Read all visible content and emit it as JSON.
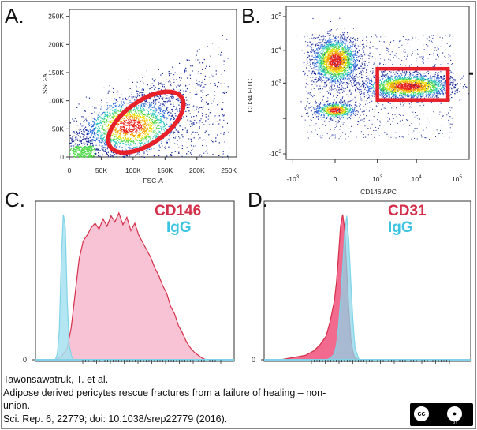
{
  "panels": {
    "a": "A.",
    "b": "B.",
    "c": "C.",
    "d": "D."
  },
  "chart_data": [
    {
      "type": "scatter",
      "xlabel": "FSC-A",
      "ylabel": "SSC-A",
      "xlim": [
        0,
        262144
      ],
      "ylim": [
        0,
        262144
      ],
      "xticks": [
        "0",
        "50K",
        "100K",
        "150K",
        "200K",
        "250K"
      ],
      "yticks": [
        "0",
        "50K",
        "100K",
        "150K",
        "200K",
        "250K"
      ],
      "xtick_values": [
        0,
        50000,
        100000,
        150000,
        200000,
        250000
      ],
      "ytick_values": [
        0,
        50000,
        100000,
        150000,
        200000,
        250000
      ],
      "gate": {
        "shape": "ellipse",
        "center": [
          120000,
          62000
        ],
        "semi_axes": [
          68000,
          38000
        ],
        "rotation_deg": -35,
        "color": "#e8202a"
      },
      "population": {
        "center": [
          95000,
          55000
        ],
        "spread": [
          45000,
          30000
        ],
        "events": 5000
      }
    },
    {
      "type": "scatter",
      "xlabel": "CD146 APC",
      "ylabel": "CD34 FITC",
      "scale": "biexponential",
      "xticks": [
        "-10^3",
        "0",
        "10^3",
        "10^4",
        "10^5"
      ],
      "yticks": [
        "-10^3",
        "10^3",
        "10^4",
        "10^5"
      ],
      "gate": {
        "shape": "rectangle",
        "x": [
          1000,
          60000
        ],
        "y": [
          250,
          2800
        ],
        "color": "#e8202a"
      },
      "populations": [
        {
          "name": "",
          "center": [
            0,
            5000
          ],
          "events": 2200
        },
        {
          "name": "",
          "center": [
            6000,
            800
          ],
          "events": 2400
        },
        {
          "name": "",
          "center": [
            0,
            80
          ],
          "events": 700
        }
      ]
    },
    {
      "type": "area",
      "title_series": [
        "CD146",
        "IgG"
      ],
      "series": [
        {
          "name": "CD146",
          "color": "#d42f4a",
          "fill": "#f7b8cd",
          "x": [
            0.1,
            0.13,
            0.16,
            0.18,
            0.2,
            0.22,
            0.24,
            0.26,
            0.28,
            0.3,
            0.32,
            0.34,
            0.36,
            0.38,
            0.4,
            0.42,
            0.44,
            0.46,
            0.48,
            0.5,
            0.52,
            0.54,
            0.56,
            0.58,
            0.6,
            0.62,
            0.64,
            0.66,
            0.68,
            0.7,
            0.72,
            0.74,
            0.76,
            0.78,
            0.8,
            0.82,
            0.84,
            0.86
          ],
          "values": [
            0,
            2,
            8,
            22,
            45,
            68,
            80,
            84,
            89,
            92,
            88,
            95,
            90,
            97,
            93,
            99,
            91,
            96,
            87,
            92,
            84,
            79,
            74,
            69,
            62,
            57,
            50,
            45,
            36,
            31,
            23,
            18,
            12,
            8,
            5,
            3,
            1,
            0
          ]
        },
        {
          "name": "IgG",
          "color": "#7fd3e8",
          "fill": "#a6e2f0",
          "x": [
            0.1,
            0.11,
            0.12,
            0.13,
            0.14,
            0.15,
            0.16,
            0.17,
            0.18,
            0.19
          ],
          "values": [
            0,
            4,
            20,
            68,
            98,
            90,
            40,
            10,
            3,
            0
          ]
        }
      ],
      "ylim": [
        0,
        100
      ],
      "ytick": "0"
    },
    {
      "type": "area",
      "title_series": [
        "CD31",
        "IgG"
      ],
      "series": [
        {
          "name": "CD31",
          "color": "#d42f4a",
          "fill": "#f0507a",
          "x": [
            0.08,
            0.12,
            0.16,
            0.2,
            0.24,
            0.27,
            0.3,
            0.32,
            0.34,
            0.35,
            0.36,
            0.37,
            0.38,
            0.39,
            0.4,
            0.41,
            0.42,
            0.43,
            0.44,
            0.46
          ],
          "values": [
            0,
            1,
            2,
            3,
            6,
            10,
            16,
            26,
            40,
            52,
            70,
            90,
            98,
            88,
            60,
            34,
            14,
            5,
            1,
            0
          ]
        },
        {
          "name": "IgG",
          "color": "#7fd3e8",
          "fill": "#8fd6e8",
          "x": [
            0.3,
            0.32,
            0.34,
            0.35,
            0.36,
            0.37,
            0.38,
            0.39,
            0.4,
            0.41,
            0.42,
            0.43,
            0.44,
            0.46
          ],
          "values": [
            0,
            1,
            4,
            10,
            22,
            40,
            62,
            86,
            97,
            80,
            52,
            26,
            8,
            0
          ]
        }
      ],
      "ylim": [
        0,
        100
      ],
      "ytick": "0"
    }
  ],
  "colors": {
    "gate": "#e8202a",
    "magenta": "#d42f4a",
    "cyan": "#3dc4e0"
  },
  "citation": {
    "line1": "Tawonsawatruk, T. et al.",
    "line2": "Adipose derived pericytes rescue fractures from a failure of healing – non-",
    "line3": "union.",
    "line4": "Sci. Rep. 6, 22779; doi: 10.1038/srep22779 (2016)."
  },
  "license": {
    "cc": "cc",
    "by": "BY"
  }
}
